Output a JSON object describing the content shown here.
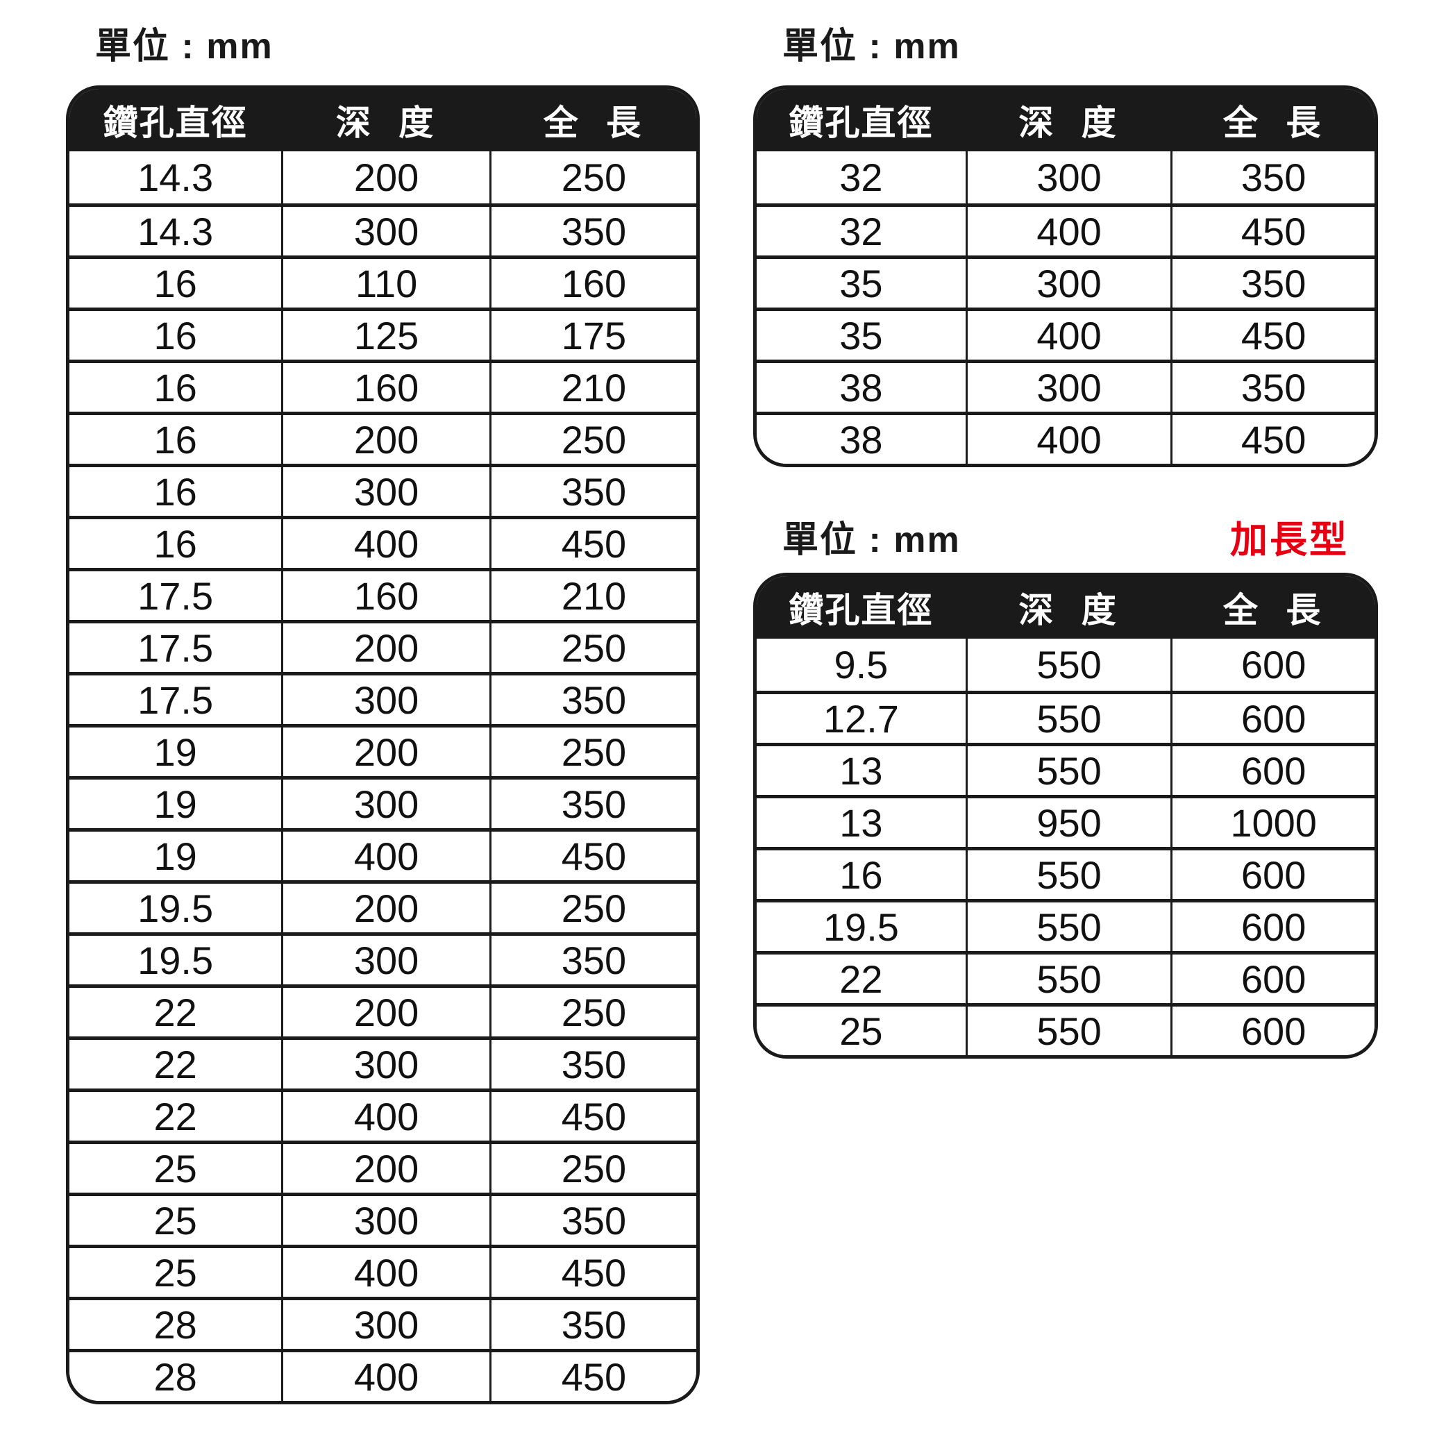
{
  "colors": {
    "page_bg": "#ffffff",
    "header_bg": "#1a1a1a",
    "header_text": "#ffffff",
    "border": "#1a1a1a",
    "cell_bg": "#ffffff",
    "cell_text": "#111111",
    "title_text": "#1a1a1a",
    "badge_red": "#e60012"
  },
  "tables": [
    {
      "name": "standard-sizes-left",
      "unit_label": "單位 : mm",
      "badge": "",
      "columns": [
        "鑽孔直徑",
        "深 度",
        "全 長"
      ],
      "rows": [
        [
          "14.3",
          "200",
          "250"
        ],
        [
          "14.3",
          "300",
          "350"
        ],
        [
          "16",
          "110",
          "160"
        ],
        [
          "16",
          "125",
          "175"
        ],
        [
          "16",
          "160",
          "210"
        ],
        [
          "16",
          "200",
          "250"
        ],
        [
          "16",
          "300",
          "350"
        ],
        [
          "16",
          "400",
          "450"
        ],
        [
          "17.5",
          "160",
          "210"
        ],
        [
          "17.5",
          "200",
          "250"
        ],
        [
          "17.5",
          "300",
          "350"
        ],
        [
          "19",
          "200",
          "250"
        ],
        [
          "19",
          "300",
          "350"
        ],
        [
          "19",
          "400",
          "450"
        ],
        [
          "19.5",
          "200",
          "250"
        ],
        [
          "19.5",
          "300",
          "350"
        ],
        [
          "22",
          "200",
          "250"
        ],
        [
          "22",
          "300",
          "350"
        ],
        [
          "22",
          "400",
          "450"
        ],
        [
          "25",
          "200",
          "250"
        ],
        [
          "25",
          "300",
          "350"
        ],
        [
          "25",
          "400",
          "450"
        ],
        [
          "28",
          "300",
          "350"
        ],
        [
          "28",
          "400",
          "450"
        ]
      ]
    },
    {
      "name": "standard-sizes-right",
      "unit_label": "單位 : mm",
      "badge": "",
      "columns": [
        "鑽孔直徑",
        "深 度",
        "全 長"
      ],
      "rows": [
        [
          "32",
          "300",
          "350"
        ],
        [
          "32",
          "400",
          "450"
        ],
        [
          "35",
          "300",
          "350"
        ],
        [
          "35",
          "400",
          "450"
        ],
        [
          "38",
          "300",
          "350"
        ],
        [
          "38",
          "400",
          "450"
        ]
      ]
    },
    {
      "name": "extended-sizes",
      "unit_label": "單位 : mm",
      "badge": "加長型",
      "columns": [
        "鑽孔直徑",
        "深 度",
        "全 長"
      ],
      "rows": [
        [
          "9.5",
          "550",
          "600"
        ],
        [
          "12.7",
          "550",
          "600"
        ],
        [
          "13",
          "550",
          "600"
        ],
        [
          "13",
          "950",
          "1000"
        ],
        [
          "16",
          "550",
          "600"
        ],
        [
          "19.5",
          "550",
          "600"
        ],
        [
          "22",
          "550",
          "600"
        ],
        [
          "25",
          "550",
          "600"
        ]
      ]
    }
  ]
}
